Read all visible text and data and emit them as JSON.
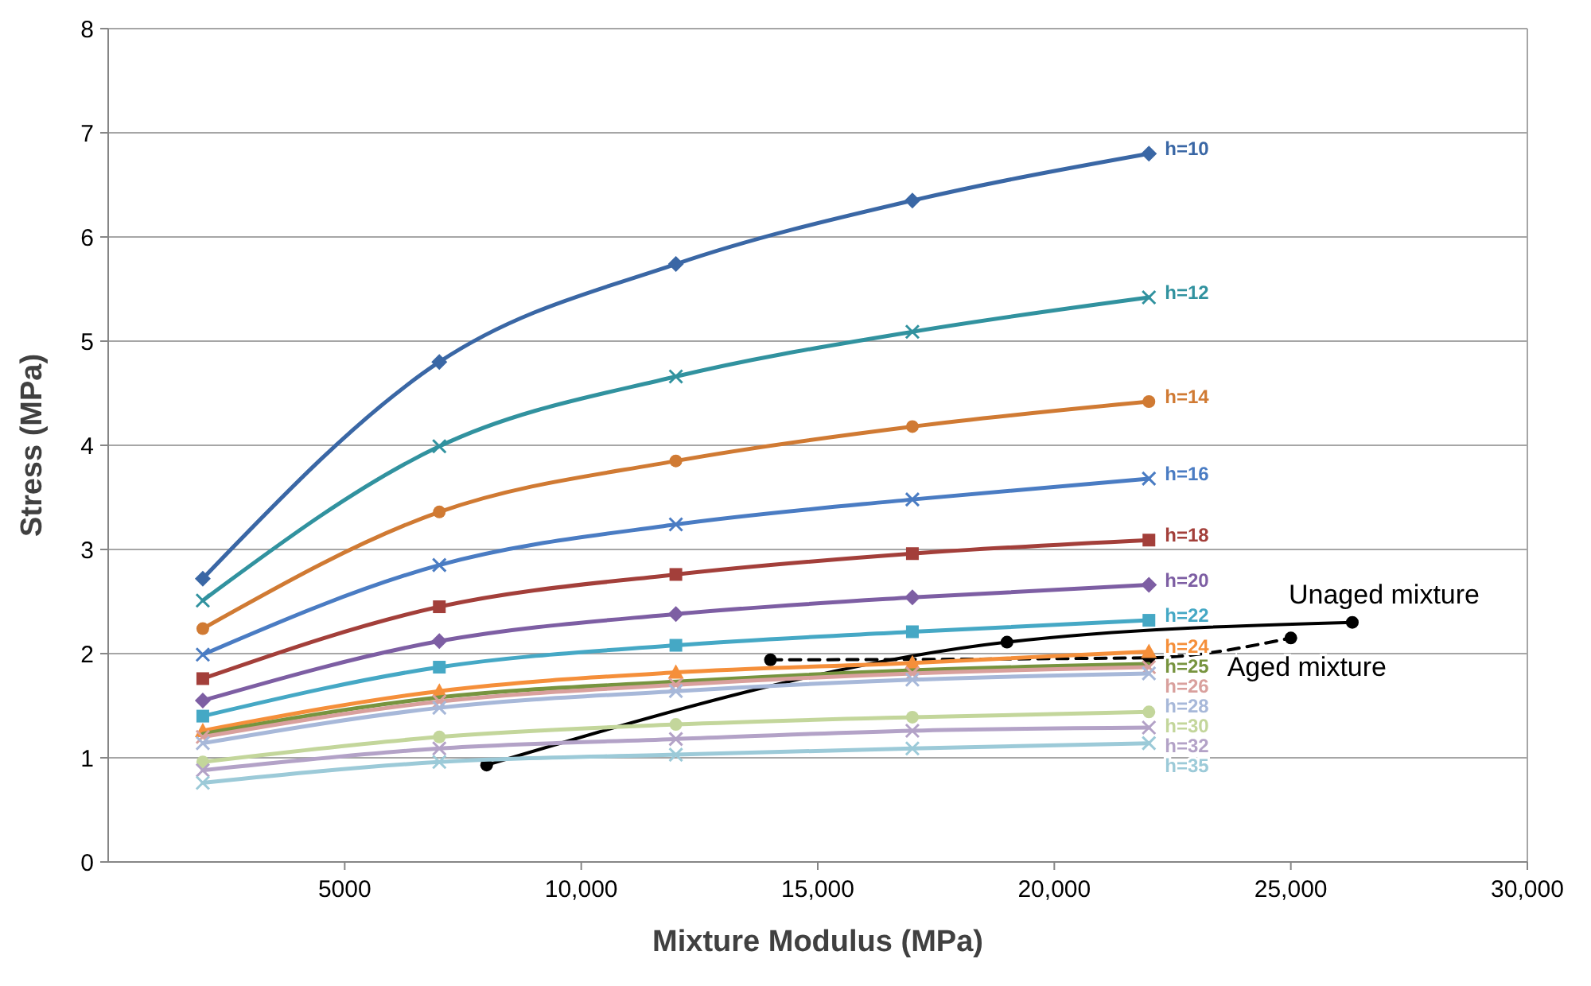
{
  "chart_data": {
    "type": "line",
    "xlabel": "Mixture Modulus (MPa)",
    "ylabel": "Stress (MPa)",
    "xlim": [
      0,
      30000
    ],
    "xticks": [
      {
        "value": 5000,
        "label": "5000"
      },
      {
        "value": 10000,
        "label": "10,000"
      },
      {
        "value": 15000,
        "label": "15,000"
      },
      {
        "value": 20000,
        "label": "20,000"
      },
      {
        "value": 25000,
        "label": "25,000"
      },
      {
        "value": 30000,
        "label": "30,000"
      }
    ],
    "ylim": [
      0,
      8
    ],
    "yticks": [
      0,
      1,
      2,
      3,
      4,
      5,
      6,
      7,
      8
    ],
    "grid": "y",
    "x": [
      2000,
      7000,
      12000,
      17000,
      22000
    ],
    "series": [
      {
        "name": "h=10",
        "color": "#3a67a5",
        "marker": "diamond",
        "values": [
          2.72,
          4.8,
          5.74,
          6.35,
          6.8
        ]
      },
      {
        "name": "h=12",
        "color": "#31929f",
        "marker": "cross",
        "values": [
          2.51,
          3.99,
          4.66,
          5.09,
          5.42
        ]
      },
      {
        "name": "h=14",
        "color": "#d07a33",
        "marker": "circle",
        "values": [
          2.24,
          3.36,
          3.85,
          4.18,
          4.42
        ]
      },
      {
        "name": "h=16",
        "color": "#4a7cc3",
        "marker": "cross",
        "values": [
          1.99,
          2.85,
          3.24,
          3.48,
          3.68
        ]
      },
      {
        "name": "h=18",
        "color": "#a33f3a",
        "marker": "square",
        "values": [
          1.76,
          2.45,
          2.76,
          2.96,
          3.09
        ]
      },
      {
        "name": "h=20",
        "color": "#7d5ea3",
        "marker": "diamond",
        "values": [
          1.55,
          2.12,
          2.38,
          2.54,
          2.66
        ]
      },
      {
        "name": "h=22",
        "color": "#45a8c5",
        "marker": "square",
        "values": [
          1.4,
          1.87,
          2.08,
          2.21,
          2.32
        ]
      },
      {
        "name": "h=24",
        "color": "#f58f3a",
        "marker": "triangle",
        "values": [
          1.26,
          1.64,
          1.82,
          1.91,
          2.02
        ]
      },
      {
        "name": "h=25",
        "color": "#77943f",
        "marker": "none",
        "values": [
          1.23,
          1.58,
          1.73,
          1.84,
          1.9
        ]
      },
      {
        "name": "h=26",
        "color": "#d9a09d",
        "marker": "cross",
        "values": [
          1.2,
          1.54,
          1.7,
          1.81,
          1.87
        ]
      },
      {
        "name": "h=28",
        "color": "#a7b8d9",
        "marker": "cross",
        "values": [
          1.14,
          1.48,
          1.64,
          1.75,
          1.81
        ]
      },
      {
        "name": "h=30",
        "color": "#c3d69b",
        "marker": "circle",
        "values": [
          0.96,
          1.2,
          1.32,
          1.39,
          1.44
        ]
      },
      {
        "name": "h=32",
        "color": "#b3a2c7",
        "marker": "cross",
        "values": [
          0.88,
          1.09,
          1.18,
          1.26,
          1.29
        ]
      },
      {
        "name": "h=35",
        "color": "#9ccad8",
        "marker": "cross",
        "values": [
          0.76,
          0.96,
          1.03,
          1.09,
          1.14
        ]
      },
      {
        "name": "Unaged mixture",
        "color": "#000000",
        "marker": "circle",
        "line_style": "solid",
        "x": [
          8000,
          19000,
          26300
        ],
        "values": [
          0.93,
          2.11,
          2.3
        ]
      },
      {
        "name": "Aged mixture",
        "color": "#000000",
        "marker": "circle",
        "line_style": "dashed",
        "x": [
          14000,
          22000,
          25000
        ],
        "values": [
          1.94,
          1.96,
          2.15
        ]
      }
    ]
  }
}
